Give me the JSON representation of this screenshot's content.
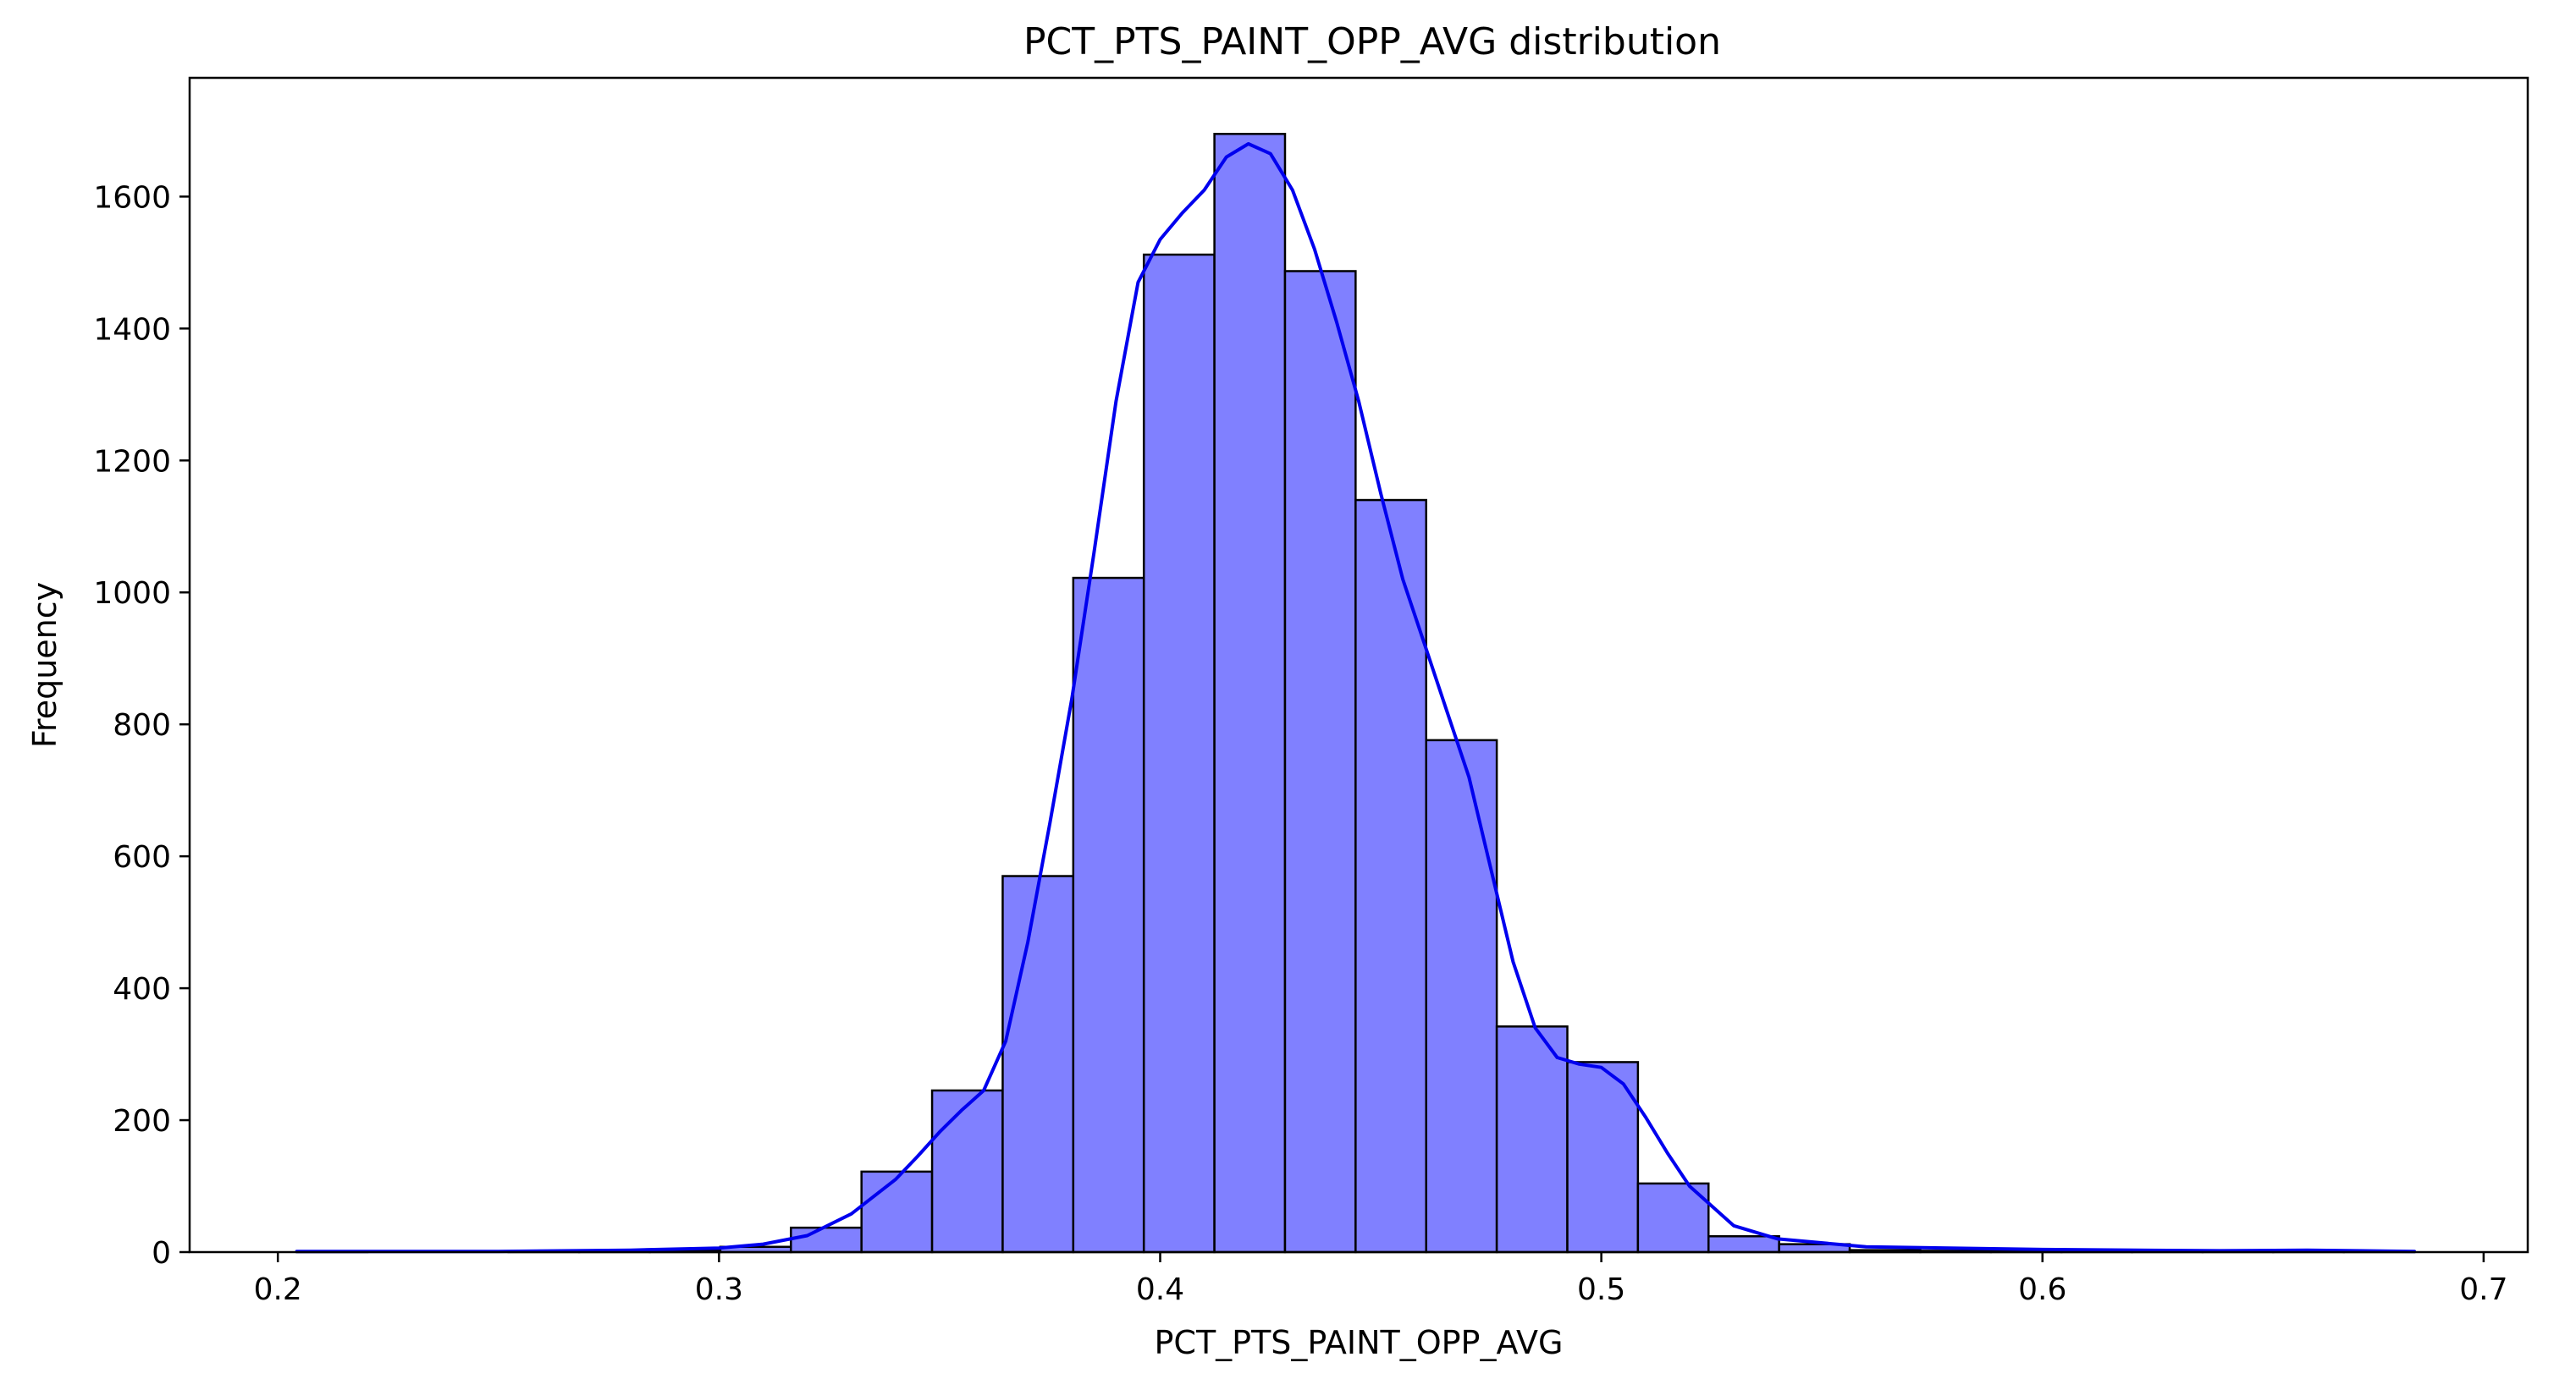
{
  "chart_data": {
    "type": "bar",
    "title": "PCT_PTS_PAINT_OPP_AVG distribution",
    "xlabel": "PCT_PTS_PAINT_OPP_AVG",
    "ylabel": "Frequency",
    "xlim": [
      0.18,
      0.71
    ],
    "ylim": [
      0,
      1780
    ],
    "xticks": [
      0.2,
      0.3,
      0.4,
      0.5,
      0.6,
      0.7
    ],
    "xtick_labels": [
      "0.2",
      "0.3",
      "0.4",
      "0.5",
      "0.6",
      "0.7"
    ],
    "yticks": [
      0,
      200,
      400,
      600,
      800,
      1000,
      1200,
      1400,
      1600
    ],
    "ytick_labels": [
      "0",
      "200",
      "400",
      "600",
      "800",
      "1000",
      "1200",
      "1400",
      "1600"
    ],
    "bins": [
      {
        "x0": 0.2043,
        "x1": 0.2203,
        "count": 1
      },
      {
        "x0": 0.2203,
        "x1": 0.2363,
        "count": 0
      },
      {
        "x0": 0.2363,
        "x1": 0.2523,
        "count": 0
      },
      {
        "x0": 0.2523,
        "x1": 0.2683,
        "count": 1
      },
      {
        "x0": 0.2683,
        "x1": 0.2843,
        "count": 2
      },
      {
        "x0": 0.2843,
        "x1": 0.3003,
        "count": 3
      },
      {
        "x0": 0.3003,
        "x1": 0.3163,
        "count": 8
      },
      {
        "x0": 0.3163,
        "x1": 0.3323,
        "count": 37
      },
      {
        "x0": 0.3323,
        "x1": 0.3483,
        "count": 122
      },
      {
        "x0": 0.3483,
        "x1": 0.3643,
        "count": 245
      },
      {
        "x0": 0.3643,
        "x1": 0.3803,
        "count": 570
      },
      {
        "x0": 0.3803,
        "x1": 0.3963,
        "count": 1022
      },
      {
        "x0": 0.3963,
        "x1": 0.4123,
        "count": 1512
      },
      {
        "x0": 0.4123,
        "x1": 0.4283,
        "count": 1695
      },
      {
        "x0": 0.4283,
        "x1": 0.4443,
        "count": 1487
      },
      {
        "x0": 0.4443,
        "x1": 0.4603,
        "count": 1140
      },
      {
        "x0": 0.4603,
        "x1": 0.4763,
        "count": 776
      },
      {
        "x0": 0.4763,
        "x1": 0.4923,
        "count": 342
      },
      {
        "x0": 0.4923,
        "x1": 0.5083,
        "count": 288
      },
      {
        "x0": 0.5083,
        "x1": 0.5243,
        "count": 104
      },
      {
        "x0": 0.5243,
        "x1": 0.5403,
        "count": 24
      },
      {
        "x0": 0.5403,
        "x1": 0.5563,
        "count": 12
      },
      {
        "x0": 0.5563,
        "x1": 0.5723,
        "count": 3
      },
      {
        "x0": 0.5723,
        "x1": 0.5883,
        "count": 2
      },
      {
        "x0": 0.5883,
        "x1": 0.6043,
        "count": 2
      },
      {
        "x0": 0.6043,
        "x1": 0.6203,
        "count": 1
      },
      {
        "x0": 0.6203,
        "x1": 0.6363,
        "count": 1
      },
      {
        "x0": 0.6363,
        "x1": 0.6523,
        "count": 1
      },
      {
        "x0": 0.6523,
        "x1": 0.6683,
        "count": 2
      },
      {
        "x0": 0.6683,
        "x1": 0.6843,
        "count": 1
      }
    ],
    "kde": {
      "x": [
        0.2043,
        0.25,
        0.28,
        0.3,
        0.31,
        0.32,
        0.33,
        0.34,
        0.345,
        0.35,
        0.355,
        0.36,
        0.365,
        0.37,
        0.375,
        0.38,
        0.385,
        0.39,
        0.395,
        0.4,
        0.405,
        0.41,
        0.415,
        0.42,
        0.425,
        0.43,
        0.435,
        0.44,
        0.445,
        0.45,
        0.455,
        0.46,
        0.465,
        0.47,
        0.475,
        0.48,
        0.485,
        0.49,
        0.495,
        0.5,
        0.505,
        0.51,
        0.515,
        0.52,
        0.53,
        0.54,
        0.56,
        0.6,
        0.64,
        0.66,
        0.6843
      ],
      "y": [
        1,
        1,
        3,
        6,
        12,
        25,
        58,
        110,
        145,
        182,
        215,
        245,
        320,
        470,
        650,
        840,
        1060,
        1290,
        1470,
        1535,
        1575,
        1610,
        1660,
        1680,
        1665,
        1610,
        1520,
        1410,
        1290,
        1150,
        1020,
        920,
        820,
        720,
        580,
        440,
        340,
        295,
        285,
        280,
        255,
        205,
        150,
        100,
        40,
        20,
        8,
        4,
        2,
        3,
        1
      ]
    },
    "colors": {
      "bar_fill": "#8080ff",
      "bar_edge": "#000000",
      "kde_line": "#0000ee"
    },
    "grid": false,
    "legend": "none"
  }
}
